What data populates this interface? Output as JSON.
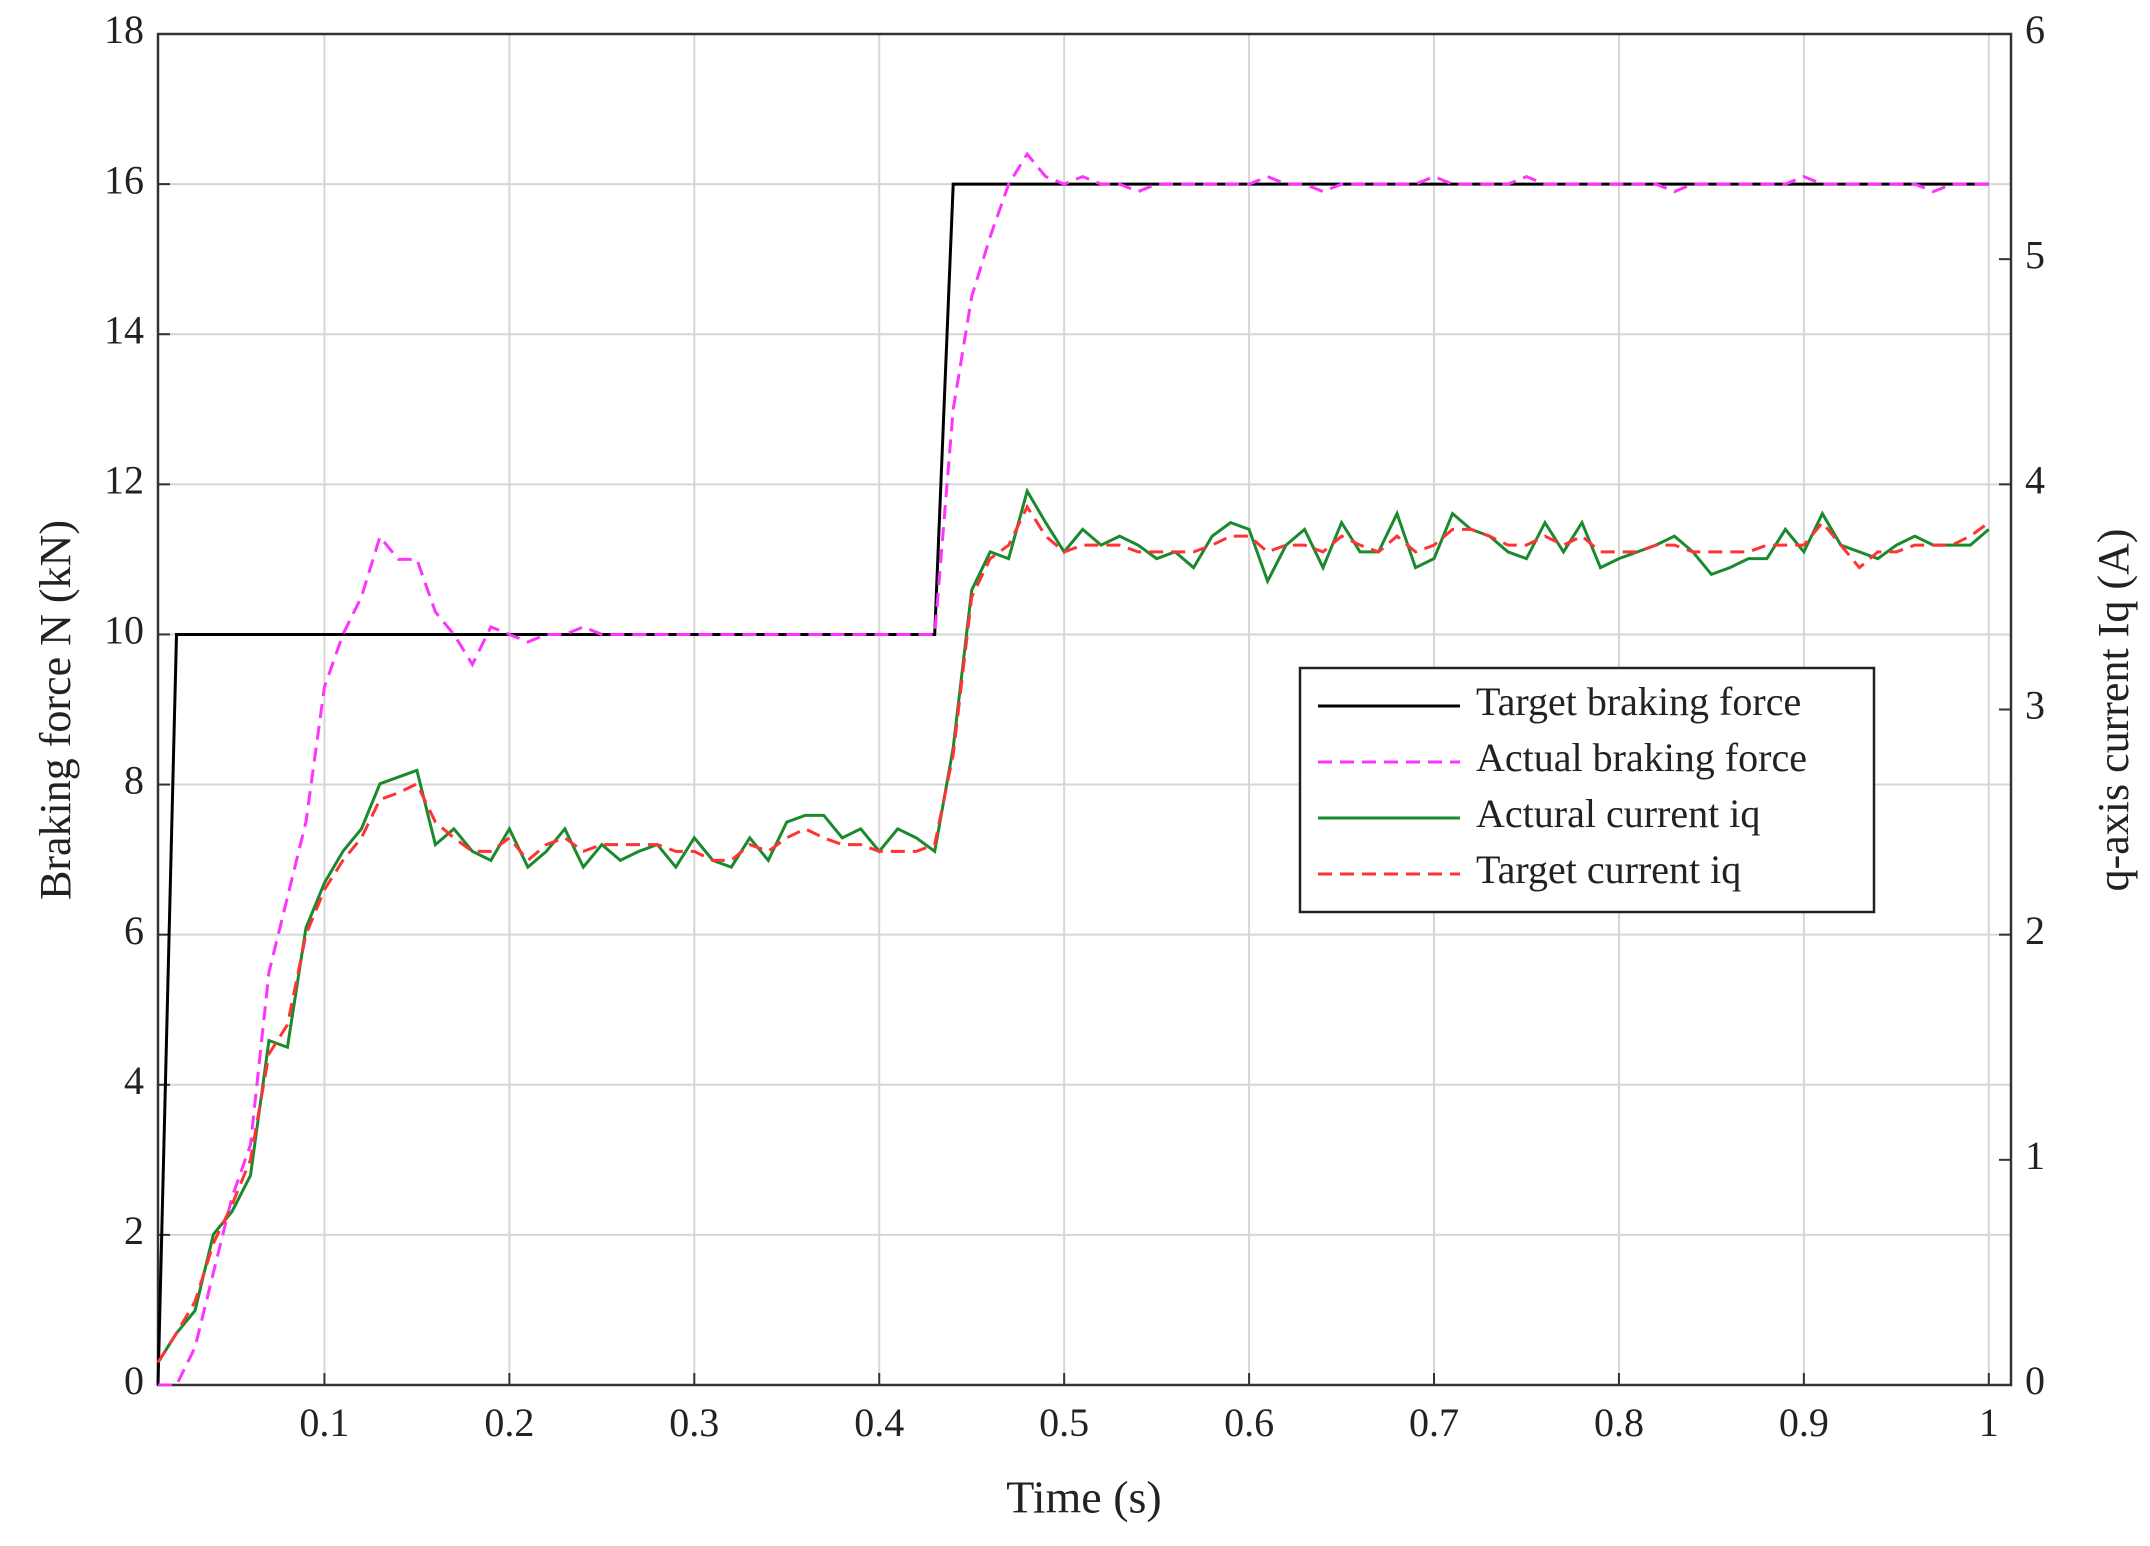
{
  "chart_data": {
    "type": "line",
    "xlabel": "Time (s)",
    "ylabel": "Braking force N (kN)",
    "y2label": "q-axis current Iq (A)",
    "x": [
      0.01,
      0.02,
      0.03,
      0.04,
      0.05,
      0.06,
      0.07,
      0.08,
      0.09,
      0.1,
      0.11,
      0.12,
      0.13,
      0.14,
      0.15,
      0.16,
      0.17,
      0.18,
      0.19,
      0.2,
      0.21,
      0.22,
      0.23,
      0.24,
      0.25,
      0.26,
      0.27,
      0.28,
      0.29,
      0.3,
      0.31,
      0.32,
      0.33,
      0.34,
      0.35,
      0.36,
      0.37,
      0.38,
      0.39,
      0.4,
      0.41,
      0.42,
      0.43,
      0.44,
      0.45,
      0.46,
      0.47,
      0.48,
      0.49,
      0.5,
      0.51,
      0.52,
      0.53,
      0.54,
      0.55,
      0.56,
      0.57,
      0.58,
      0.59,
      0.6,
      0.61,
      0.62,
      0.63,
      0.64,
      0.65,
      0.66,
      0.67,
      0.68,
      0.69,
      0.7,
      0.71,
      0.72,
      0.73,
      0.74,
      0.75,
      0.76,
      0.77,
      0.78,
      0.79,
      0.8,
      0.81,
      0.82,
      0.83,
      0.84,
      0.85,
      0.86,
      0.87,
      0.88,
      0.89,
      0.9,
      0.91,
      0.92,
      0.93,
      0.94,
      0.95,
      0.96,
      0.97,
      0.98,
      0.99,
      1.0
    ],
    "series": [
      {
        "name": "Target braking force",
        "color": "#000000",
        "dashed": false,
        "axis": "y",
        "values": [
          0,
          10,
          10,
          10,
          10,
          10,
          10,
          10,
          10,
          10,
          10,
          10,
          10,
          10,
          10,
          10,
          10,
          10,
          10,
          10,
          10,
          10,
          10,
          10,
          10,
          10,
          10,
          10,
          10,
          10,
          10,
          10,
          10,
          10,
          10,
          10,
          10,
          10,
          10,
          10,
          10,
          10,
          10,
          16,
          16,
          16,
          16,
          16,
          16,
          16,
          16,
          16,
          16,
          16,
          16,
          16,
          16,
          16,
          16,
          16,
          16,
          16,
          16,
          16,
          16,
          16,
          16,
          16,
          16,
          16,
          16,
          16,
          16,
          16,
          16,
          16,
          16,
          16,
          16,
          16,
          16,
          16,
          16,
          16,
          16,
          16,
          16,
          16,
          16,
          16,
          16,
          16,
          16,
          16,
          16,
          16,
          16,
          16,
          16,
          16
        ]
      },
      {
        "name": "Actual braking force",
        "color": "#ff33ff",
        "dashed": true,
        "axis": "y",
        "values": [
          0,
          0,
          0.5,
          1.5,
          2.5,
          3.2,
          5.5,
          6.5,
          7.5,
          9.3,
          10,
          10.5,
          11.3,
          11,
          11,
          10.3,
          10,
          9.6,
          10.1,
          10,
          9.9,
          10,
          10,
          10.1,
          10,
          10,
          10,
          10,
          10,
          10,
          10,
          10,
          10,
          10,
          10,
          10,
          10,
          10,
          10,
          10,
          10,
          10,
          10,
          13,
          14.5,
          15.3,
          16,
          16.4,
          16.1,
          16,
          16.1,
          16,
          16,
          15.9,
          16,
          16,
          16,
          16,
          16,
          16,
          16.1,
          16,
          16,
          15.9,
          16,
          16,
          16,
          16,
          16,
          16.1,
          16,
          16,
          16,
          16,
          16.1,
          16,
          16,
          16,
          16,
          16,
          16,
          16,
          15.9,
          16,
          16,
          16,
          16,
          16,
          16,
          16.1,
          16,
          16,
          16,
          16,
          16,
          16,
          15.9,
          16,
          16,
          16
        ]
      },
      {
        "name": "Actural current iq",
        "color": "#1a8a2e",
        "dashed": false,
        "axis": "y2",
        "values": [
          0.1,
          0.23,
          0.33,
          0.67,
          0.77,
          0.93,
          1.53,
          1.5,
          2.03,
          2.23,
          2.37,
          2.47,
          2.67,
          2.7,
          2.73,
          2.4,
          2.47,
          2.37,
          2.33,
          2.47,
          2.3,
          2.37,
          2.47,
          2.3,
          2.4,
          2.33,
          2.37,
          2.4,
          2.3,
          2.43,
          2.33,
          2.3,
          2.43,
          2.33,
          2.5,
          2.53,
          2.53,
          2.43,
          2.47,
          2.37,
          2.47,
          2.43,
          2.37,
          2.83,
          3.53,
          3.7,
          3.67,
          3.97,
          3.83,
          3.7,
          3.8,
          3.73,
          3.77,
          3.73,
          3.67,
          3.7,
          3.63,
          3.77,
          3.83,
          3.8,
          3.57,
          3.73,
          3.8,
          3.63,
          3.83,
          3.7,
          3.7,
          3.87,
          3.63,
          3.67,
          3.87,
          3.8,
          3.77,
          3.7,
          3.67,
          3.83,
          3.7,
          3.83,
          3.63,
          3.67,
          3.7,
          3.73,
          3.77,
          3.7,
          3.6,
          3.63,
          3.67,
          3.67,
          3.8,
          3.7,
          3.87,
          3.73,
          3.7,
          3.67,
          3.73,
          3.77,
          3.73,
          3.73,
          3.73,
          3.8
        ]
      },
      {
        "name": "Target current iq",
        "color": "#ff3333",
        "dashed": true,
        "axis": "y2",
        "values": [
          0.1,
          0.23,
          0.37,
          0.63,
          0.8,
          1.0,
          1.47,
          1.6,
          2.0,
          2.2,
          2.33,
          2.43,
          2.6,
          2.63,
          2.67,
          2.5,
          2.43,
          2.37,
          2.37,
          2.43,
          2.33,
          2.4,
          2.43,
          2.37,
          2.4,
          2.4,
          2.4,
          2.4,
          2.37,
          2.37,
          2.33,
          2.33,
          2.4,
          2.37,
          2.43,
          2.47,
          2.43,
          2.4,
          2.4,
          2.37,
          2.37,
          2.37,
          2.4,
          2.8,
          3.5,
          3.67,
          3.73,
          3.9,
          3.77,
          3.7,
          3.73,
          3.73,
          3.73,
          3.7,
          3.7,
          3.7,
          3.7,
          3.73,
          3.77,
          3.77,
          3.7,
          3.73,
          3.73,
          3.7,
          3.77,
          3.73,
          3.7,
          3.77,
          3.7,
          3.73,
          3.8,
          3.8,
          3.77,
          3.73,
          3.73,
          3.77,
          3.73,
          3.77,
          3.7,
          3.7,
          3.7,
          3.73,
          3.73,
          3.7,
          3.7,
          3.7,
          3.7,
          3.73,
          3.73,
          3.73,
          3.83,
          3.73,
          3.63,
          3.7,
          3.7,
          3.73,
          3.73,
          3.73,
          3.77,
          3.83
        ]
      }
    ],
    "xlim": [
      0.01,
      1.012
    ],
    "xticks": [
      0.1,
      0.2,
      0.3,
      0.4,
      0.5,
      0.6,
      0.7,
      0.8,
      0.9,
      1
    ],
    "ylim": [
      0,
      18
    ],
    "yticks": [
      0,
      2,
      4,
      6,
      8,
      10,
      12,
      14,
      16,
      18
    ],
    "y2lim": [
      0,
      6
    ],
    "y2ticks": [
      0,
      1,
      2,
      3,
      4,
      5,
      6
    ],
    "grid": true,
    "legend": "right"
  }
}
